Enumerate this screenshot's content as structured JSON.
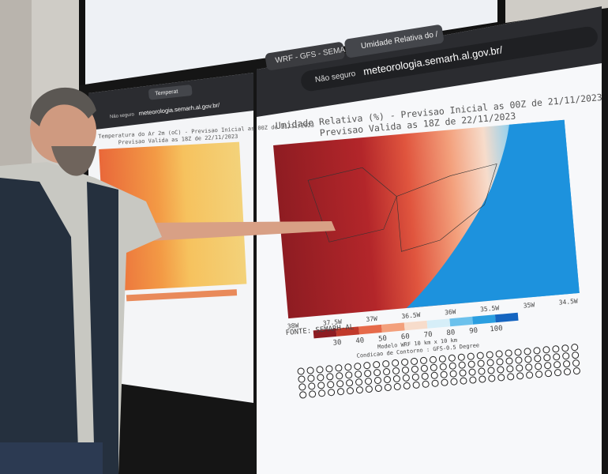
{
  "left_window": {
    "tab": "Temperat",
    "security": "Não seguro",
    "url": "meteorologia.semarh.al.gov.br/",
    "map": {
      "title": "Temperatura do Ar 2m (oC) - Previsao Inicial as 00Z de 21/11/2023",
      "subtitle": "Previsao Valida as 18Z de 22/11/2023"
    }
  },
  "right_window": {
    "tabs": [
      "WRF - GFS - SEMARH",
      "Umidade Relativa do /"
    ],
    "security": "Não seguro",
    "url": "meteorologia.semarh.al.gov.br/",
    "map": {
      "title": "Umidade Relativa (%) - Previsao Inicial as 00Z de 21/11/2023",
      "subtitle": "Previsao Valida as 18Z de 22/11/2023",
      "x_labels": [
        "38W",
        "37.5W",
        "37W",
        "36.5W",
        "36W",
        "35.5W",
        "35W",
        "34.5W"
      ],
      "colorbar_labels": [
        30,
        40,
        50,
        60,
        70,
        80,
        90,
        100
      ],
      "model": "Modelo WRF   10 km x 10 km",
      "boundary": "Condicao de Contorno : GFS-0.5 Degree",
      "source": "FONTE: SEMARH-AL"
    }
  }
}
